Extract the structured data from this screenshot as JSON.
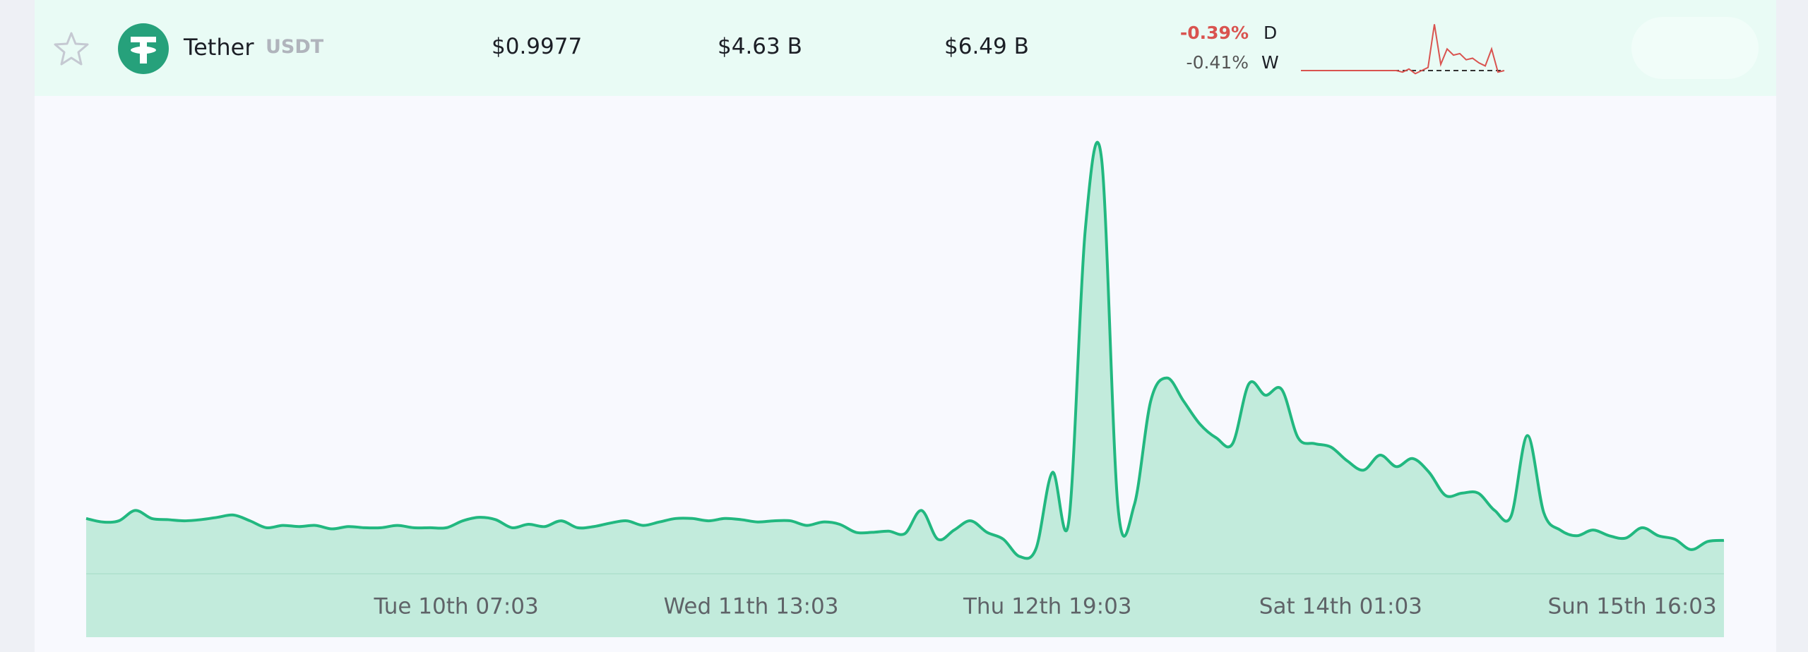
{
  "row": {
    "name": "Tether",
    "symbol": "USDT",
    "price": "$0.9977",
    "volume": "$4.63 B",
    "market_cap": "$6.49 B",
    "change_day": "-0.39%",
    "day_label": "D",
    "change_week": "-0.41%",
    "week_label": "W",
    "sparkline": {
      "color": "#d9534f",
      "values": [
        0,
        0,
        0,
        0,
        0,
        0,
        0,
        0,
        0,
        0,
        0,
        0,
        0,
        0,
        0,
        0,
        -1,
        1,
        -2,
        0,
        2,
        30,
        4,
        14,
        10,
        11,
        7,
        8,
        5,
        3,
        14,
        -1,
        0
      ]
    }
  },
  "chart_data": {
    "type": "area",
    "color": "#22b880",
    "fill": "#c2ebdc",
    "values": [
      48,
      45,
      46,
      55,
      48,
      47,
      46,
      47,
      49,
      51,
      46,
      40,
      42,
      41,
      42,
      39,
      41,
      40,
      40,
      42,
      40,
      40,
      40,
      46,
      49,
      47,
      40,
      43,
      41,
      46,
      40,
      41,
      44,
      46,
      42,
      45,
      48,
      48,
      46,
      48,
      47,
      45,
      46,
      46,
      42,
      45,
      43,
      36,
      36,
      37,
      35,
      55,
      30,
      38,
      46,
      36,
      30,
      15,
      22,
      88,
      46,
      298,
      360,
      58,
      60,
      150,
      170,
      150,
      130,
      118,
      113,
      165,
      155,
      160,
      118,
      113,
      110,
      98,
      90,
      103,
      93,
      100,
      88,
      68,
      70,
      70,
      55,
      50,
      120,
      53,
      38,
      33,
      38,
      33,
      31,
      40,
      33,
      30,
      21,
      28,
      29
    ],
    "xlim": [
      0,
      100
    ],
    "ylim": [
      -55,
      400
    ],
    "xticks": [
      {
        "value": 22.6,
        "label": "Tue 10th 07:03"
      },
      {
        "value": 40.6,
        "label": "Wed 11th 13:03"
      },
      {
        "value": 58.7,
        "label": "Thu 12th 19:03"
      },
      {
        "value": 76.6,
        "label": "Sat 14th 01:03"
      },
      {
        "value": 94.4,
        "label": "Sun 15th 16:03"
      }
    ]
  }
}
